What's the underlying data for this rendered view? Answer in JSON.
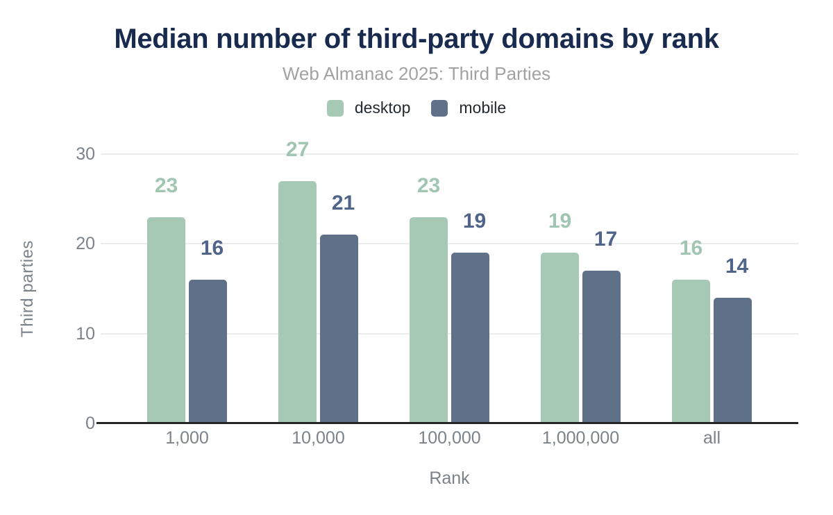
{
  "chart_data": {
    "type": "bar",
    "title": "Median number of third-party domains by rank",
    "subtitle": "Web Almanac 2025: Third Parties",
    "xlabel": "Rank",
    "ylabel": "Third parties",
    "categories": [
      "1,000",
      "10,000",
      "100,000",
      "1,000,000",
      "all"
    ],
    "series": [
      {
        "name": "desktop",
        "color": "#a6c9b5",
        "label_color": "#a0c5b0",
        "values": [
          23,
          27,
          23,
          19,
          16
        ]
      },
      {
        "name": "mobile",
        "color": "#5f7189",
        "label_color": "#4f6488",
        "values": [
          16,
          21,
          19,
          17,
          14
        ]
      }
    ],
    "ylim": [
      0,
      30
    ],
    "yticks": [
      0,
      10,
      20,
      30
    ],
    "grid": "horizontal",
    "legend_position": "top-center",
    "value_labels": true
  },
  "palette": {
    "title": "#182a4e",
    "subtitle": "#a2a2a2",
    "axis_text": "#7b8289",
    "gridline": "#ececec",
    "axis_line": "#252525",
    "legend_text": "#24292e",
    "background": "#ffffff"
  }
}
